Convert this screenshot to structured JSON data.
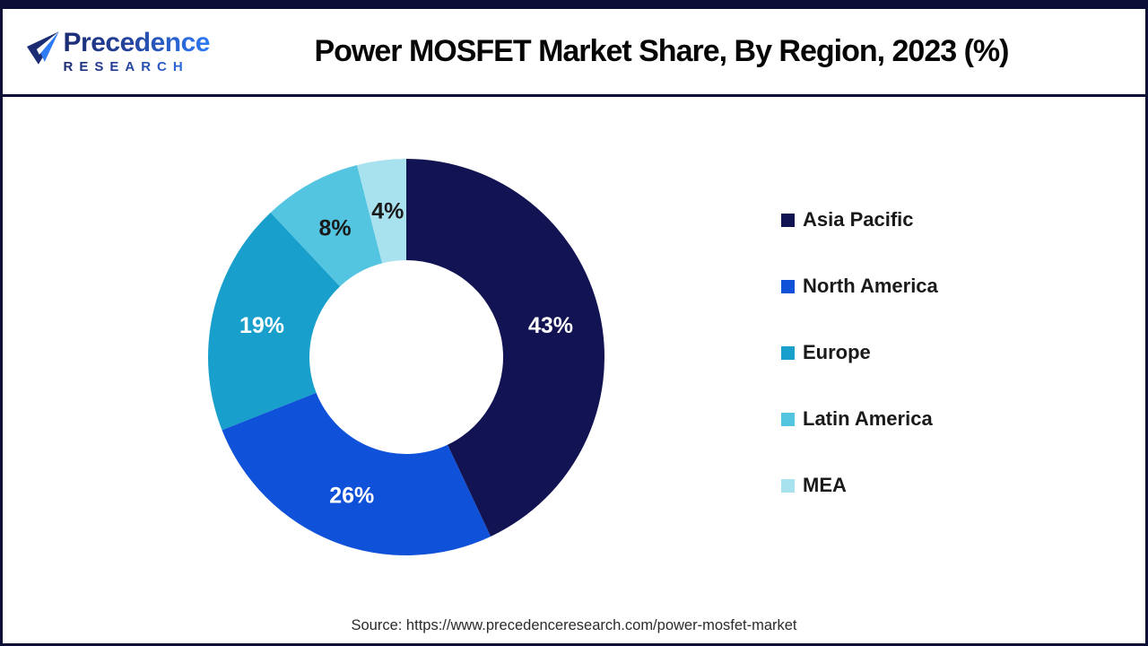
{
  "frame": {
    "border_color": "#0d0e38",
    "background": "#ffffff"
  },
  "header": {
    "logo": {
      "name": "Precedence",
      "subname": "RESEARCH",
      "icon": "paper-plane-icon",
      "gradient_start": "#1b2c72",
      "gradient_end": "#2e7bf6"
    },
    "title": "Power MOSFET Market Share, By Region, 2023 (%)"
  },
  "chart_data": {
    "type": "pie",
    "subtype": "donut",
    "title": "Power MOSFET Market Share, By Region, 2023 (%)",
    "categories": [
      "Asia Pacific",
      "North America",
      "Europe",
      "Latin America",
      "MEA"
    ],
    "values": [
      43,
      26,
      19,
      8,
      4
    ],
    "unit": "%",
    "slice_labels": [
      "43%",
      "26%",
      "19%",
      "8%",
      "4%"
    ],
    "colors": [
      "#121352",
      "#0f52d9",
      "#189fcb",
      "#54c5e0",
      "#a9e2ef"
    ],
    "slice_label_colors": [
      "#ffffff",
      "#ffffff",
      "#ffffff",
      "#1a1a1a",
      "#1a1a1a"
    ],
    "start_angle_deg": 0,
    "direction": "clockwise",
    "legend_position": "right",
    "hole_color": "#ffffff"
  },
  "legend": {
    "items": [
      {
        "label": "Asia Pacific",
        "color": "#121352"
      },
      {
        "label": "North America",
        "color": "#0f52d9"
      },
      {
        "label": "Europe",
        "color": "#189fcb"
      },
      {
        "label": "Latin America",
        "color": "#54c5e0"
      },
      {
        "label": "MEA",
        "color": "#a9e2ef"
      }
    ]
  },
  "footer": {
    "source": "Source: https://www.precedenceresearch.com/power-mosfet-market"
  }
}
